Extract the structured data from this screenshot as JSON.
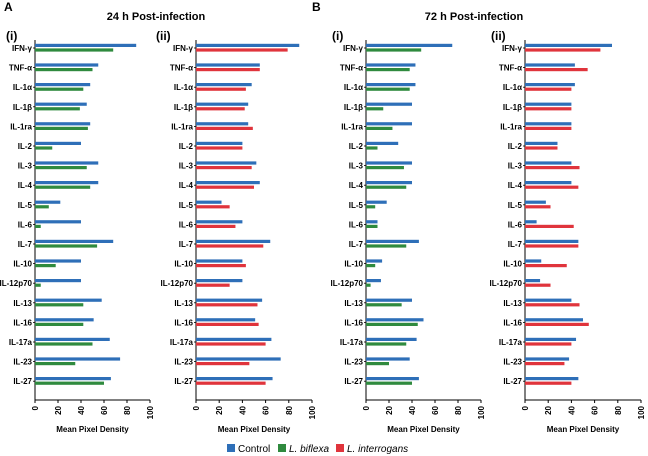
{
  "panels": [
    {
      "letter": "A",
      "title": "24 h Post-infection"
    },
    {
      "letter": "B",
      "title": "72 h Post-infection"
    }
  ],
  "legend": [
    {
      "label": "Control",
      "color": "#2e6fb8",
      "italic": false
    },
    {
      "label": "L. biflexa",
      "color": "#2f8a3e",
      "italic": true
    },
    {
      "label": "L. interrogans",
      "color": "#e0343c",
      "italic": true
    }
  ],
  "chart_data": [
    {
      "type": "bar",
      "orientation": "horizontal",
      "panel": "A",
      "subpanel": "(i)",
      "title": "24 h Post-infection",
      "xlabel": "Mean Pixel Density",
      "xlim": [
        0,
        100
      ],
      "xticks": [
        0,
        20,
        40,
        60,
        80,
        100
      ],
      "categories": [
        "IFN-γ",
        "TNF-α",
        "IL-1α",
        "IL-1β",
        "IL-1ra",
        "IL-2",
        "IL-3",
        "IL-4",
        "IL-5",
        "IL-6",
        "IL-7",
        "IL-10",
        "IL-12p70",
        "IL-13",
        "IL-16",
        "IL-17a",
        "IL-23",
        "IL-27"
      ],
      "series": [
        {
          "name": "Control",
          "color": "#2e6fb8",
          "values": [
            88,
            55,
            48,
            45,
            48,
            40,
            55,
            55,
            22,
            40,
            68,
            40,
            40,
            58,
            51,
            65,
            74,
            66
          ]
        },
        {
          "name": "L. biflexa",
          "color": "#2f8a3e",
          "values": [
            68,
            50,
            42,
            39,
            46,
            15,
            45,
            48,
            12,
            5,
            54,
            18,
            5,
            42,
            42,
            50,
            35,
            60
          ]
        }
      ]
    },
    {
      "type": "bar",
      "orientation": "horizontal",
      "panel": "A",
      "subpanel": "(ii)",
      "title": "24 h Post-infection",
      "xlabel": "Mean Pixel Density",
      "xlim": [
        0,
        100
      ],
      "xticks": [
        0,
        20,
        40,
        60,
        80,
        100
      ],
      "categories": [
        "IFN-γ",
        "TNF-α",
        "IL-1α",
        "IL-1β",
        "IL-1ra",
        "IL-2",
        "IL-3",
        "IL-4",
        "IL-5",
        "IL-6",
        "IL-7",
        "IL-10",
        "IL-12p70",
        "IL-13",
        "IL-16",
        "IL-17a",
        "IL-23",
        "IL-27"
      ],
      "series": [
        {
          "name": "Control",
          "color": "#2e6fb8",
          "values": [
            89,
            55,
            48,
            45,
            45,
            40,
            52,
            55,
            22,
            40,
            64,
            40,
            40,
            57,
            51,
            65,
            73,
            66
          ]
        },
        {
          "name": "L. interrogans",
          "color": "#e0343c",
          "values": [
            79,
            55,
            43,
            42,
            49,
            40,
            48,
            50,
            29,
            34,
            58,
            43,
            29,
            53,
            54,
            60,
            46,
            60
          ]
        }
      ]
    },
    {
      "type": "bar",
      "orientation": "horizontal",
      "panel": "B",
      "subpanel": "(i)",
      "title": "72 h Post-infection",
      "xlabel": "Mean Pixel Density",
      "xlim": [
        0,
        100
      ],
      "xticks": [
        0,
        20,
        40,
        60,
        80,
        100
      ],
      "categories": [
        "IFN-γ",
        "TNF-α",
        "IL-1α",
        "IL-1β",
        "IL-1ra",
        "IL-2",
        "IL-3",
        "IL-4",
        "IL-5",
        "IL-6",
        "IL-7",
        "IL-10",
        "IL-12p70",
        "IL-13",
        "IL-16",
        "IL-17a",
        "IL-23",
        "IL-27"
      ],
      "series": [
        {
          "name": "Control",
          "color": "#2e6fb8",
          "values": [
            75,
            43,
            43,
            40,
            40,
            28,
            40,
            40,
            18,
            10,
            46,
            14,
            13,
            40,
            50,
            44,
            38,
            46
          ]
        },
        {
          "name": "L. biflexa",
          "color": "#2f8a3e",
          "values": [
            48,
            38,
            38,
            15,
            23,
            10,
            33,
            35,
            8,
            10,
            35,
            8,
            4,
            31,
            45,
            35,
            20,
            40
          ]
        }
      ]
    },
    {
      "type": "bar",
      "orientation": "horizontal",
      "panel": "B",
      "subpanel": "(ii)",
      "title": "72 h Post-infection",
      "xlabel": "Mean Pixel Density",
      "xlim": [
        0,
        100
      ],
      "xticks": [
        0,
        20,
        40,
        60,
        80,
        100
      ],
      "categories": [
        "IFN-γ",
        "TNF-α",
        "IL-1α",
        "IL-1β",
        "IL-1ra",
        "IL-2",
        "IL-3",
        "IL-4",
        "IL-5",
        "IL-6",
        "IL-7",
        "IL-10",
        "IL-12p70",
        "IL-13",
        "IL-16",
        "IL-17a",
        "IL-23",
        "IL-27"
      ],
      "series": [
        {
          "name": "Control",
          "color": "#2e6fb8",
          "values": [
            75,
            43,
            43,
            40,
            40,
            28,
            40,
            40,
            18,
            10,
            46,
            14,
            13,
            40,
            50,
            44,
            38,
            46
          ]
        },
        {
          "name": "L. interrogans",
          "color": "#e0343c",
          "values": [
            65,
            54,
            40,
            40,
            40,
            28,
            47,
            46,
            22,
            42,
            46,
            36,
            22,
            47,
            55,
            40,
            34,
            40
          ]
        }
      ]
    }
  ]
}
